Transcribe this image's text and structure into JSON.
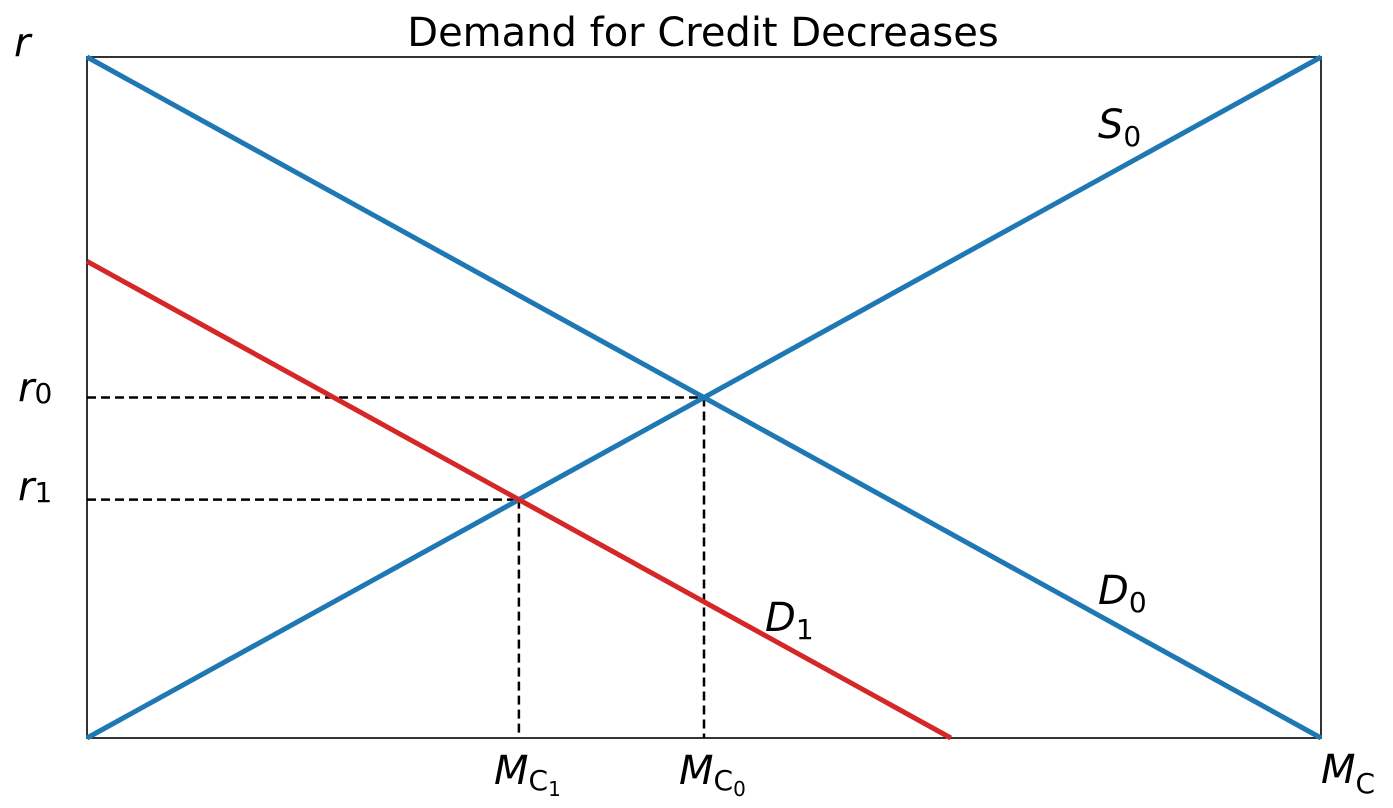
{
  "chart_data": {
    "type": "line",
    "title": "Demand for Credit Decreases",
    "xlabel": {
      "base": "M",
      "sub": "C"
    },
    "ylabel": "r",
    "xlim": [
      0,
      10
    ],
    "ylim": [
      0,
      10
    ],
    "grid": false,
    "series": [
      {
        "name_base": "S",
        "name_sub": "0",
        "color": "#1f77b4",
        "x": [
          0,
          10
        ],
        "y": [
          0,
          10
        ]
      },
      {
        "name_base": "D",
        "name_sub": "0",
        "color": "#1f77b4",
        "x": [
          0,
          10
        ],
        "y": [
          10,
          0
        ]
      },
      {
        "name_base": "D",
        "name_sub": "1",
        "color": "#d62728",
        "x": [
          0,
          7.0
        ],
        "y": [
          7.0,
          0
        ]
      }
    ],
    "equilibria": [
      {
        "x": 5.0,
        "y": 5.0,
        "ylabel_base": "r",
        "ylabel_sub": "0",
        "xlabel_base": "M",
        "xlabel_sub": "C",
        "xlabel_subsub": "0"
      },
      {
        "x": 3.5,
        "y": 3.5,
        "ylabel_base": "r",
        "ylabel_sub": "1",
        "xlabel_base": "M",
        "xlabel_sub": "C",
        "xlabel_subsub": "1"
      }
    ]
  }
}
